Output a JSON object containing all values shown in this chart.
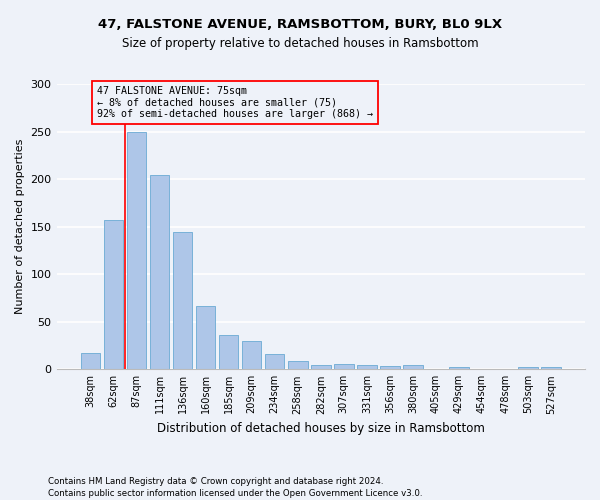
{
  "title1": "47, FALSTONE AVENUE, RAMSBOTTOM, BURY, BL0 9LX",
  "title2": "Size of property relative to detached houses in Ramsbottom",
  "xlabel": "Distribution of detached houses by size in Ramsbottom",
  "ylabel": "Number of detached properties",
  "footnote1": "Contains HM Land Registry data © Crown copyright and database right 2024.",
  "footnote2": "Contains public sector information licensed under the Open Government Licence v3.0.",
  "categories": [
    "38sqm",
    "62sqm",
    "87sqm",
    "111sqm",
    "136sqm",
    "160sqm",
    "185sqm",
    "209sqm",
    "234sqm",
    "258sqm",
    "282sqm",
    "307sqm",
    "331sqm",
    "356sqm",
    "380sqm",
    "405sqm",
    "429sqm",
    "454sqm",
    "478sqm",
    "503sqm",
    "527sqm"
  ],
  "values": [
    17,
    157,
    250,
    204,
    144,
    67,
    36,
    30,
    16,
    9,
    5,
    6,
    5,
    4,
    5,
    0,
    2,
    0,
    0,
    2,
    2
  ],
  "bar_color": "#aec6e8",
  "bar_edge_color": "#6aaad4",
  "bg_color": "#eef2f9",
  "grid_color": "#ffffff",
  "marker_line_color": "red",
  "annotation_line1": "47 FALSTONE AVENUE: 75sqm",
  "annotation_line2": "← 8% of detached houses are smaller (75)",
  "annotation_line3": "92% of semi-detached houses are larger (868) →",
  "annotation_box_color": "red",
  "ylim": [
    0,
    300
  ],
  "yticks": [
    0,
    50,
    100,
    150,
    200,
    250,
    300
  ],
  "marker_bar_index": 1.52
}
